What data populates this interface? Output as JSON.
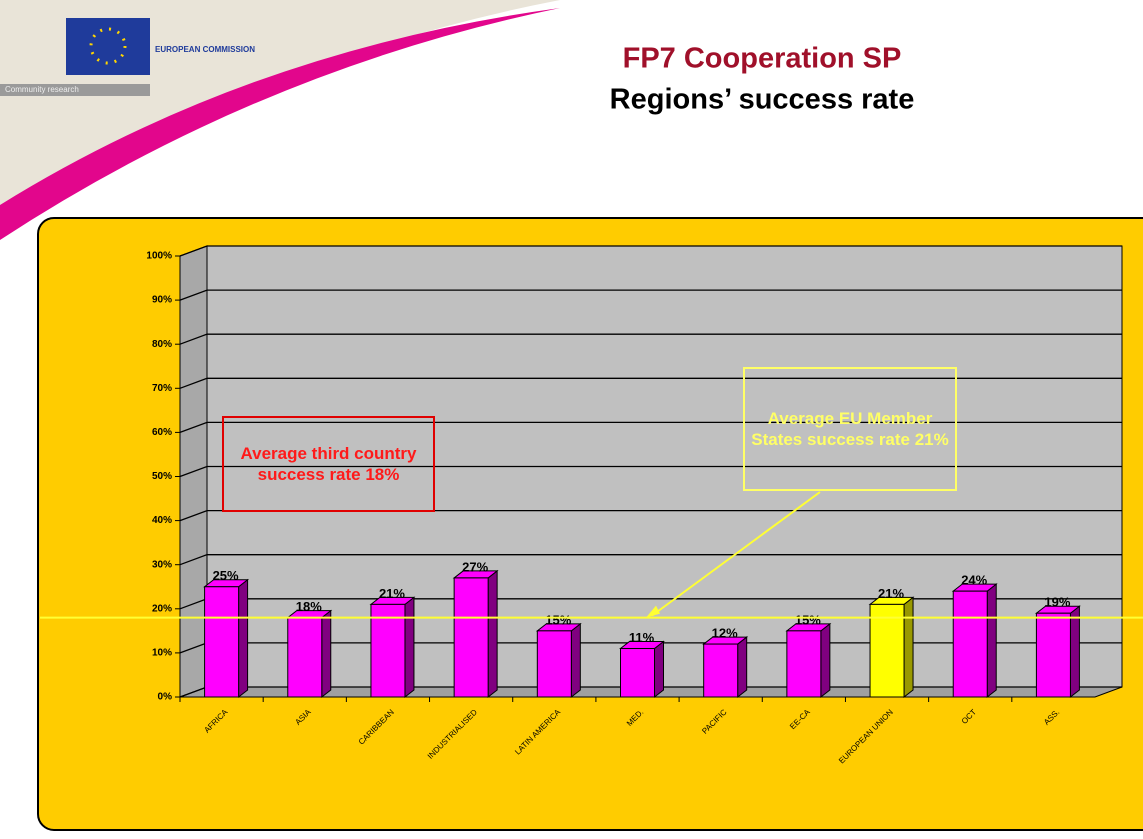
{
  "header": {
    "logo_text": "EUROPEAN COMMISSION",
    "logo_subtext": "Community research"
  },
  "chart_data": {
    "type": "bar3d",
    "title": "FP7 Cooperation SP",
    "subtitle": "Regions’ success rate",
    "categories": [
      "AFRICA",
      "ASIA",
      "CARIBBEAN",
      "INDUSTRIALISED",
      "LATIN AMERICA",
      "MED.",
      "PACIFIC",
      "EE-CA",
      "EUROPEAN UNION",
      "OCT",
      "ASS."
    ],
    "values": [
      25,
      18,
      21,
      27,
      15,
      11,
      12,
      15,
      21,
      24,
      19
    ],
    "value_labels": [
      "25%",
      "18%",
      "21%",
      "27%",
      "15%",
      "11%",
      "12%",
      "15%",
      "21%",
      "24%",
      "19%"
    ],
    "colors": [
      "#ff00ff",
      "#ff00ff",
      "#ff00ff",
      "#ff00ff",
      "#ff00ff",
      "#ff00ff",
      "#ff00ff",
      "#ff00ff",
      "#ffff00",
      "#ff00ff",
      "#ff00ff"
    ],
    "ylim": [
      0,
      100
    ],
    "yticks": [
      {
        "value": 0,
        "label": "0%"
      },
      {
        "value": 10,
        "label": "10%"
      },
      {
        "value": 20,
        "label": "20%"
      },
      {
        "value": 30,
        "label": "30%"
      },
      {
        "value": 40,
        "label": "40%"
      },
      {
        "value": 50,
        "label": "50%"
      },
      {
        "value": 60,
        "label": "60%"
      },
      {
        "value": 70,
        "label": "70%"
      },
      {
        "value": 80,
        "label": "80%"
      },
      {
        "value": 90,
        "label": "90%"
      },
      {
        "value": 100,
        "label": "100%"
      }
    ],
    "grid": true,
    "reference_line": 18,
    "annotations": [
      "Average third country success rate 18%",
      "Average EU Member States success rate 21%"
    ]
  }
}
